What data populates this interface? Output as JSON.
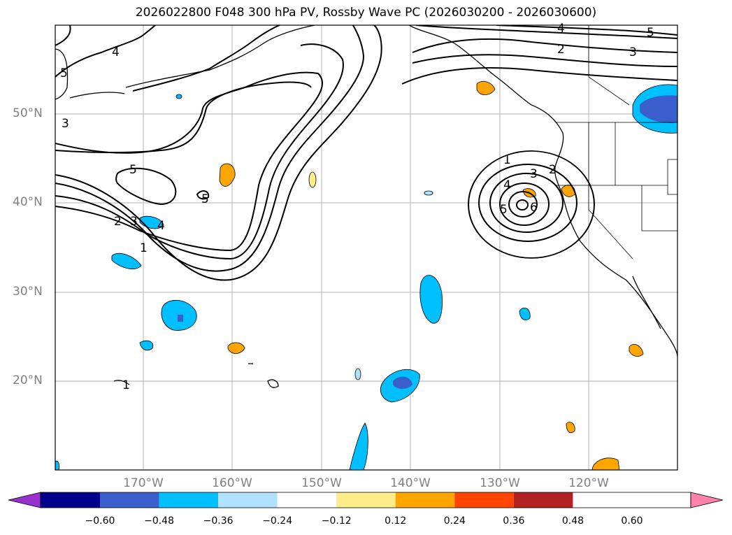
{
  "title": "2026022800 F048 300 hPa PV, Rossby Wave PC (2026030200 - 2026030600)",
  "lat_labels": [
    "50°N",
    "40°N",
    "30°N",
    "20°N"
  ],
  "lon_labels": [
    "170°W",
    "160°W",
    "150°W",
    "140°W",
    "130°W",
    "120°W"
  ],
  "contour_labels": {
    "a": "1",
    "b": "2",
    "c": "3",
    "d": "4",
    "e": "5",
    "f": "6"
  },
  "colorbar": {
    "ticks": [
      "−0.60",
      "−0.48",
      "−0.36",
      "−0.24",
      "−0.12",
      "0.12",
      "0.24",
      "0.36",
      "0.48",
      "0.60"
    ],
    "colors": [
      "#9932cc",
      "#00008b",
      "#3a5fcd",
      "#00bfff",
      "#b0e2ff",
      "#ffffff",
      "#ffec8b",
      "#ffa500",
      "#ff4500",
      "#b22222",
      "#ff82ab"
    ]
  }
}
